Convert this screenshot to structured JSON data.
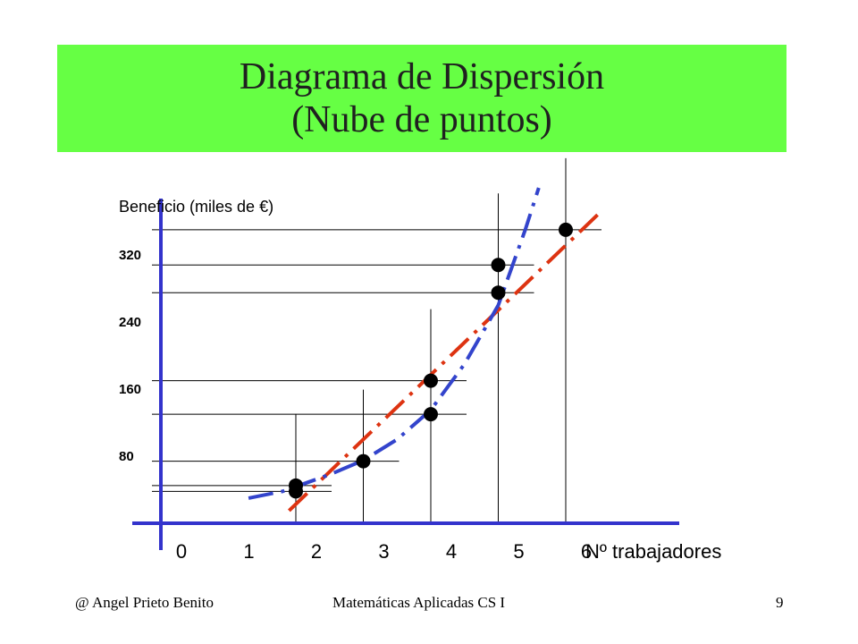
{
  "slide": {
    "title_line1": "Diagrama de Dispersión",
    "title_line2": "(Nube de puntos)",
    "title_bg_color": "#66ff44"
  },
  "chart_data": {
    "type": "scatter",
    "ylabel": "Beneficio (miles de €)",
    "xlabel": "Nº trabajadores",
    "x_ticks": [
      "0",
      "1",
      "2",
      "3",
      "4",
      "5",
      "6"
    ],
    "y_ticks": [
      {
        "value": 80,
        "label": "80"
      },
      {
        "value": 160,
        "label": "160"
      },
      {
        "value": 240,
        "label": "240"
      },
      {
        "value": 320,
        "label": "320"
      }
    ],
    "xlim": [
      0,
      7.6
    ],
    "ylim": [
      0,
      345
    ],
    "grid": false,
    "points": [
      {
        "x": 2,
        "y": 38
      },
      {
        "x": 2,
        "y": 45
      },
      {
        "x": 3,
        "y": 74
      },
      {
        "x": 4,
        "y": 130
      },
      {
        "x": 4,
        "y": 170
      },
      {
        "x": 5,
        "y": 275
      },
      {
        "x": 5,
        "y": 308
      },
      {
        "x": 6,
        "y": 350
      }
    ],
    "trend_lines": [
      {
        "style": "dash-dot",
        "color": "#dd3311",
        "points": [
          {
            "x": 1.9,
            "y": 15
          },
          {
            "x": 6.5,
            "y": 370
          }
        ]
      },
      {
        "style": "dash-dot",
        "color": "#3344cc",
        "points": [
          {
            "x": 1.3,
            "y": 30
          },
          {
            "x": 1.8,
            "y": 38
          },
          {
            "x": 2.5,
            "y": 58
          },
          {
            "x": 3.0,
            "y": 75
          },
          {
            "x": 3.5,
            "y": 100
          },
          {
            "x": 4.0,
            "y": 135
          },
          {
            "x": 4.5,
            "y": 190
          },
          {
            "x": 5.0,
            "y": 260
          },
          {
            "x": 5.4,
            "y": 350
          },
          {
            "x": 5.6,
            "y": 400
          }
        ]
      }
    ],
    "axis_color": "#3333cc",
    "point_color": "#000000"
  },
  "footer": {
    "author": "@   Angel Prieto Benito",
    "course": "Matemáticas Aplicadas CS I",
    "page": "9"
  }
}
